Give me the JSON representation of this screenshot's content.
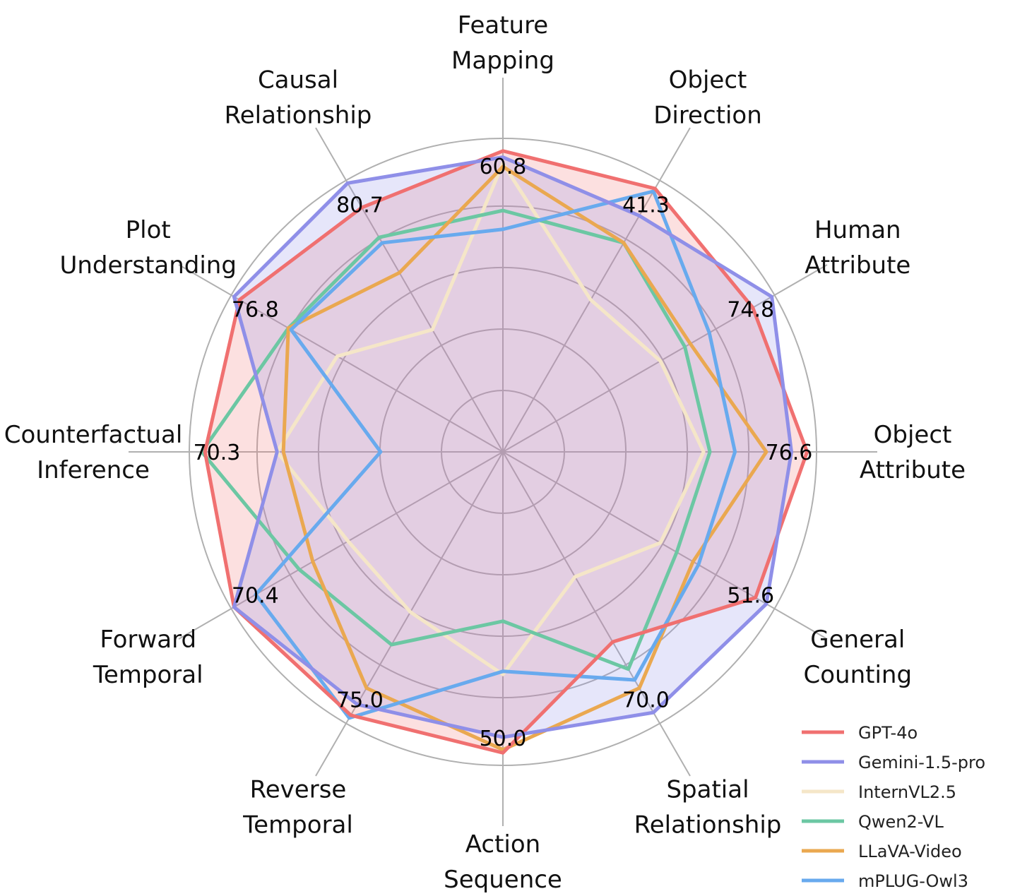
{
  "chart_data": {
    "type": "radar",
    "categories": [
      [
        "Feature",
        "Mapping"
      ],
      [
        "Object",
        "Direction"
      ],
      [
        "Human",
        "Attribute"
      ],
      [
        "Object",
        "Attribute"
      ],
      [
        "General",
        "Counting"
      ],
      [
        "Spatial",
        "Relationship"
      ],
      [
        "Action",
        "Sequence"
      ],
      [
        "Reverse",
        "Temporal"
      ],
      [
        "Forward",
        "Temporal"
      ],
      [
        "Counterfactual",
        "Inference"
      ],
      [
        "Plot",
        "Understanding"
      ],
      [
        "Causal",
        "Relationship"
      ]
    ],
    "max_labels": [
      "60.8",
      "41.3",
      "74.8",
      "76.6",
      "51.6",
      "70.0",
      "50.0",
      "75.0",
      "70.4",
      "70.3",
      "76.8",
      "80.7"
    ],
    "series": [
      {
        "name": "GPT-4o",
        "color": "#f07070",
        "fill": true,
        "values": [
          0.96,
          0.97,
          0.92,
          0.97,
          0.93,
          0.7,
          0.96,
          0.97,
          0.99,
          0.95,
          0.97,
          0.9
        ]
      },
      {
        "name": "Gemini-1.5-pro",
        "color": "#8f8fe8",
        "fill": true,
        "values": [
          0.94,
          0.87,
          0.99,
          0.92,
          0.97,
          0.96,
          0.91,
          0.93,
          0.99,
          0.72,
          0.99,
          0.99
        ]
      },
      {
        "name": "InternVL2.5",
        "color": "#f5e6c8",
        "fill": false,
        "values": [
          0.92,
          0.56,
          0.58,
          0.64,
          0.58,
          0.46,
          0.71,
          0.59,
          0.57,
          0.72,
          0.61,
          0.45
        ]
      },
      {
        "name": "Qwen2-VL",
        "color": "#6cc7a3",
        "fill": false,
        "values": [
          0.77,
          0.77,
          0.67,
          0.66,
          0.64,
          0.8,
          0.54,
          0.71,
          0.75,
          0.96,
          0.79,
          0.79
        ]
      },
      {
        "name": "LLaVA-Video",
        "color": "#eaa850",
        "fill": false,
        "values": [
          0.91,
          0.77,
          0.69,
          0.84,
          0.7,
          0.87,
          0.95,
          0.87,
          0.7,
          0.7,
          0.79,
          0.66
        ]
      },
      {
        "name": "mPLUG-Owl3",
        "color": "#68aaee",
        "fill": false,
        "values": [
          0.71,
          0.96,
          0.76,
          0.74,
          0.72,
          0.84,
          0.7,
          0.98,
          0.91,
          0.39,
          0.78,
          0.77
        ]
      }
    ]
  }
}
